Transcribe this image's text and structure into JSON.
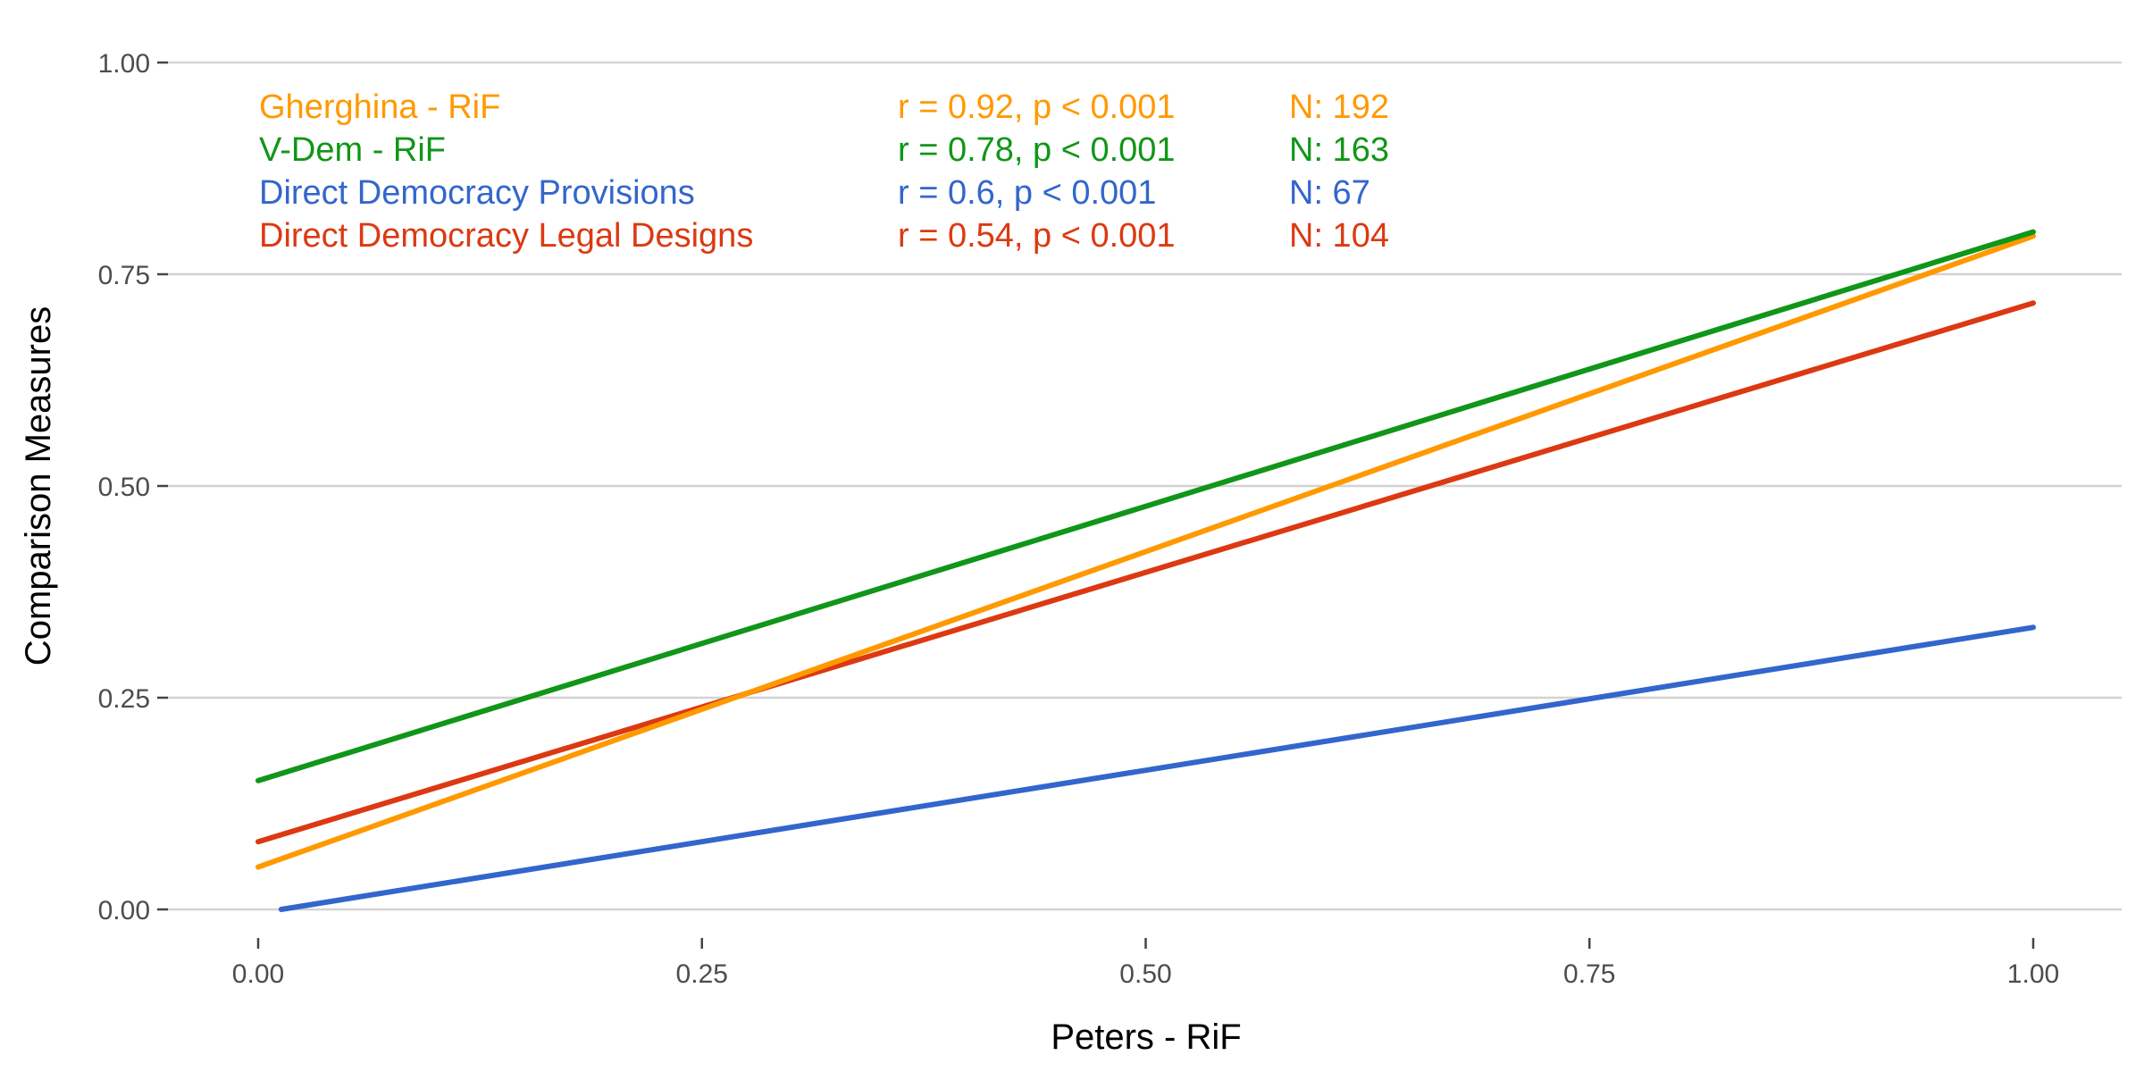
{
  "chart_data": {
    "type": "line",
    "title": "",
    "xlabel": "Peters - RiF",
    "ylabel": "Comparison Measures",
    "xlim": [
      -0.05,
      1.06
    ],
    "ylim": [
      -0.02,
      1.05
    ],
    "x_ticks": [
      "0.00",
      "0.25",
      "0.50",
      "0.75",
      "1.00"
    ],
    "y_ticks": [
      "0.00",
      "0.25",
      "0.50",
      "0.75",
      "1.00"
    ],
    "x_tick_values": [
      0,
      0.25,
      0.5,
      0.75,
      1.0
    ],
    "y_tick_values": [
      0,
      0.25,
      0.5,
      0.75,
      1.0
    ],
    "grid": "horizontal",
    "legend_position": "top-left",
    "series": [
      {
        "name": "Gherghina - RiF",
        "stat": "r = 0.92, p < 0.001",
        "n": "N: 192",
        "color": "#FF9900",
        "x": [
          0,
          1
        ],
        "y": [
          0.05,
          0.795
        ]
      },
      {
        "name": "V-Dem - RiF",
        "stat": "r = 0.78, p < 0.001",
        "n": "N: 163",
        "color": "#109618",
        "x": [
          0,
          1
        ],
        "y": [
          0.152,
          0.8
        ]
      },
      {
        "name": "Direct Democracy Provisions",
        "stat": "r = 0.6, p < 0.001",
        "n": "N: 67",
        "color": "#3366CC",
        "x": [
          0.013,
          1
        ],
        "y": [
          0.0,
          0.333
        ]
      },
      {
        "name": "Direct Democracy Legal Designs",
        "stat": "r = 0.54, p < 0.001",
        "n": "N: 104",
        "color": "#DC3912",
        "x": [
          0,
          1
        ],
        "y": [
          0.08,
          0.716
        ]
      }
    ]
  }
}
